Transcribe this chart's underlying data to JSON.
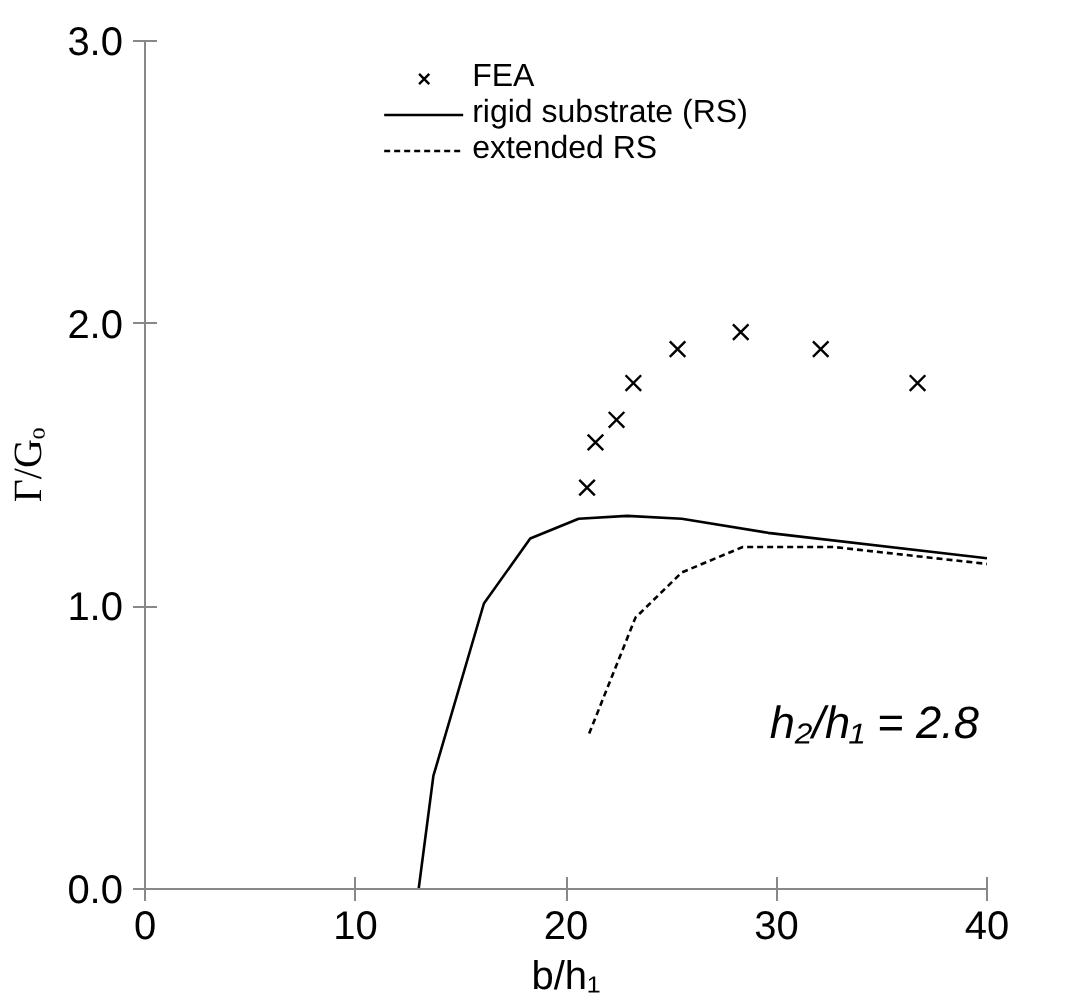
{
  "chart_data": {
    "type": "line",
    "xlabel": "b/h₁",
    "ylabel": "Γ/Gₒ",
    "xlim": [
      0,
      40
    ],
    "xticks": [
      0,
      10,
      20,
      30,
      40
    ],
    "ylim": [
      0,
      3
    ],
    "yticks": [
      {
        "value": 0,
        "label": "0.0"
      },
      {
        "value": 1,
        "label": "1.0"
      },
      {
        "value": 2,
        "label": "2.0"
      },
      {
        "value": 3,
        "label": "3.0"
      }
    ],
    "grid": false,
    "legend": "top",
    "annotations": [
      "h₂/h₁ = 2.8"
    ],
    "series": [
      {
        "name": "FEA",
        "type": "scatter",
        "marker": "cross",
        "color": "#000000",
        "x": [
          21.0,
          21.4,
          22.4,
          23.2,
          25.3,
          28.3,
          32.1,
          36.7
        ],
        "values": [
          1.42,
          1.58,
          1.66,
          1.79,
          1.91,
          1.97,
          1.91,
          1.79
        ]
      },
      {
        "name": "rigid substrate (RS)",
        "line_style": "solid",
        "color": "#000000",
        "x": [
          13.0,
          13.7,
          16.1,
          18.3,
          20.6,
          22.9,
          25.5,
          29.6,
          40.0
        ],
        "values": [
          0.0,
          0.4,
          1.01,
          1.24,
          1.31,
          1.32,
          1.31,
          1.26,
          1.17
        ]
      },
      {
        "name": "extended RS",
        "line_style": "dashed",
        "color": "#000000",
        "x": [
          21.1,
          23.3,
          25.5,
          28.4,
          32.7,
          40.0
        ],
        "values": [
          0.55,
          0.96,
          1.12,
          1.21,
          1.21,
          1.15
        ]
      }
    ]
  }
}
